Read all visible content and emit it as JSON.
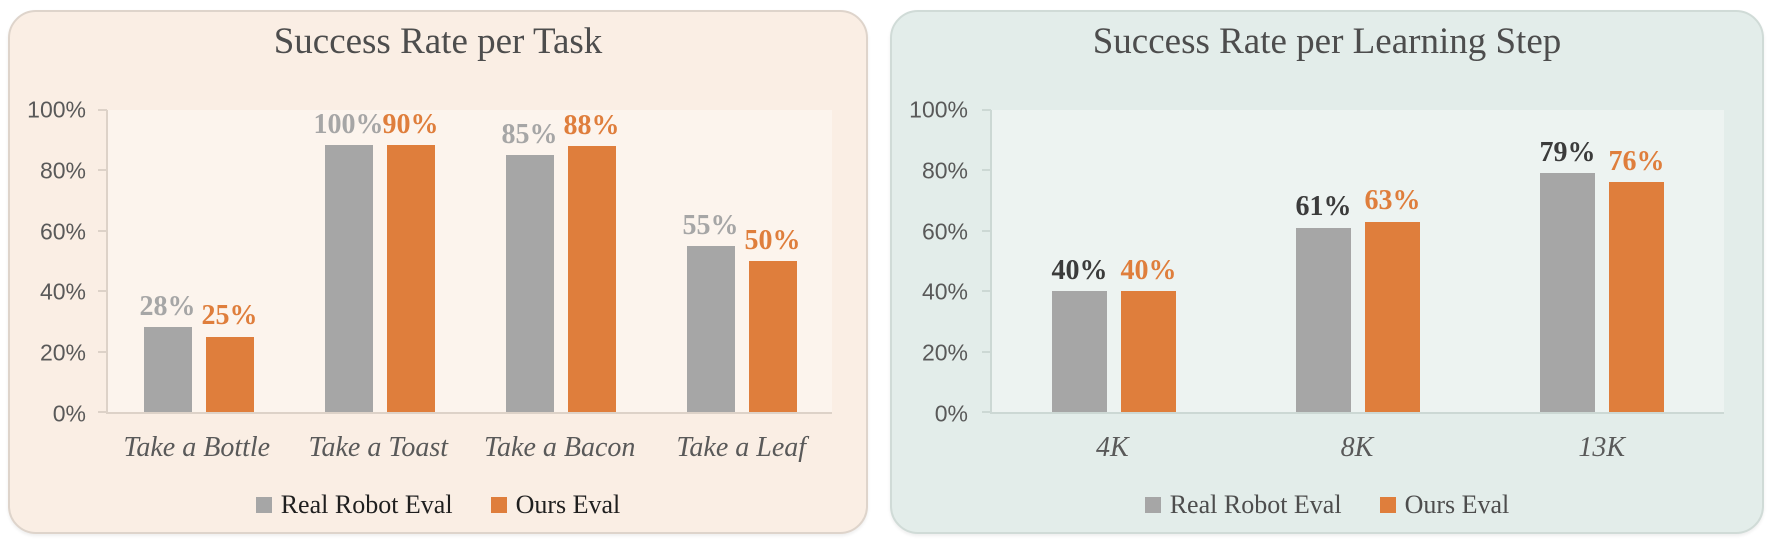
{
  "page": {
    "background": "#ffffff"
  },
  "chart_data": [
    {
      "type": "bar",
      "title": "Success Rate per Task",
      "categories": [
        "Take a Bottle",
        "Take a Toast",
        "Take a Bacon",
        "Take a Leaf"
      ],
      "series": [
        {
          "name": "Real Robot Eval",
          "color": "#a6a6a6",
          "label_color": "#a6a6a6",
          "values": [
            28,
            100,
            85,
            55
          ]
        },
        {
          "name": "Ours Eval",
          "color": "#df7e3c",
          "label_color": "#df7e3c",
          "values": [
            25,
            90,
            88,
            50
          ]
        }
      ],
      "ylim": [
        0,
        100
      ],
      "yticks": [
        0,
        20,
        40,
        60,
        80,
        100
      ],
      "ytick_format": "{v}%",
      "data_label_format": "{v}%",
      "grid": false,
      "legend_position": "bottom",
      "legend_text_color": "#1f1f1f",
      "axis_color": "#ddd2c8",
      "title_color": "#4d4d4d"
    },
    {
      "type": "bar",
      "title": "Success Rate per Learning Step",
      "categories": [
        "4K",
        "8K",
        "13K"
      ],
      "series": [
        {
          "name": "Real Robot Eval",
          "color": "#a6a6a6",
          "label_color": "#3b3b3b",
          "values": [
            40,
            61,
            79
          ]
        },
        {
          "name": "Ours Eval",
          "color": "#df7e3c",
          "label_color": "#df7e3c",
          "values": [
            40,
            63,
            76
          ]
        }
      ],
      "ylim": [
        0,
        100
      ],
      "yticks": [
        0,
        20,
        40,
        60,
        80,
        100
      ],
      "ytick_format": "{v}%",
      "data_label_format": "{v}%",
      "grid": false,
      "legend_position": "bottom",
      "legend_text_color": "#4d4d4d",
      "axis_color": "#ccd8d4",
      "title_color": "#4d4d4d"
    }
  ],
  "panels": [
    {
      "background": "#faeee4",
      "border_color": "#ded4cb"
    },
    {
      "background": "#e3edea",
      "border_color": "#d0dbd7"
    }
  ]
}
